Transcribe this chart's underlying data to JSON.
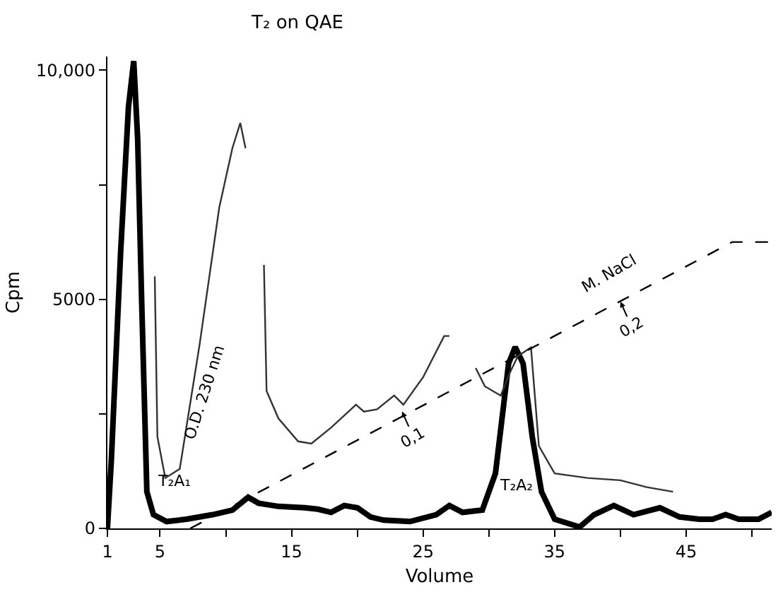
{
  "chart_data": {
    "type": "line",
    "title": "T₂ on QAE",
    "xlabel": "Volume",
    "ylabel": "Cpm",
    "xlim": [
      1,
      51.5
    ],
    "ylim": [
      0,
      10300
    ],
    "xticks": [
      1,
      5,
      {
        "value": 10,
        "label": null
      },
      15,
      {
        "value": 20,
        "label": null
      },
      25,
      {
        "value": 30,
        "label": null
      },
      35,
      {
        "value": 40,
        "label": null
      },
      45,
      {
        "value": 50,
        "label": null
      }
    ],
    "yticks": [
      0,
      {
        "value": 2500,
        "label": null
      },
      5000,
      {
        "value": 7500,
        "label": null
      },
      {
        "value": 10000,
        "label": "10,000"
      }
    ],
    "legend": false,
    "marker": "none",
    "series": [
      {
        "color": "#000000",
        "line_style": "solid",
        "x": [
          1,
          1.3,
          2,
          2.6,
          3,
          3.3,
          3.6,
          4,
          4.5,
          5.5,
          7,
          9,
          10.5,
          11.7,
          12.5,
          14,
          16,
          17,
          18,
          19,
          20,
          21,
          22,
          24,
          26,
          27,
          28,
          29.5,
          30.5,
          31.5,
          32,
          32.6,
          33.3,
          34,
          35,
          36.9,
          38,
          39.5,
          41,
          43,
          44.5,
          46,
          47,
          48,
          49,
          50.5,
          51.5
        ],
        "values": [
          0,
          1500,
          6000,
          9200,
          10200,
          8500,
          5000,
          800,
          300,
          150,
          200,
          300,
          400,
          680,
          550,
          480,
          450,
          420,
          350,
          500,
          450,
          250,
          180,
          150,
          300,
          500,
          350,
          400,
          1200,
          3600,
          3960,
          3600,
          2000,
          800,
          200,
          30,
          300,
          500,
          300,
          450,
          250,
          200,
          200,
          300,
          200,
          200,
          350
        ]
      },
      {
        "name": "O.D. 230 nm",
        "color": "#333333",
        "line_style": "solid",
        "x": [
          4.6,
          4.8,
          5.4,
          6.5,
          8,
          9.5,
          10.5,
          11.1,
          11.5,
          12.3,
          12.9,
          13.1,
          14,
          15.5,
          16.5,
          18,
          19.9,
          20.5,
          21.5,
          22.8,
          23.5,
          25,
          26.6,
          27,
          28,
          29,
          29.7,
          30.9,
          31.6,
          32.2,
          33.2,
          33.8,
          35,
          37.5,
          40,
          42,
          44
        ],
        "values": [
          5500,
          2000,
          1100,
          1300,
          4000,
          7000,
          8300,
          8850,
          8300,
          null,
          5750,
          3000,
          2400,
          1900,
          1850,
          2200,
          2700,
          2550,
          2600,
          2900,
          2700,
          3300,
          4200,
          4200,
          null,
          3500,
          3100,
          2900,
          3400,
          3760,
          3950,
          1800,
          1200,
          1100,
          1050,
          900,
          800
        ]
      },
      {
        "name": "M. NaCl",
        "color": "#000000",
        "line_style": "dashed",
        "x": [
          7.3,
          48.5,
          51.5
        ],
        "values": [
          0,
          6250,
          6250
        ]
      }
    ],
    "annotations": [
      {
        "text": "0,1",
        "x": 23.4,
        "y": 2550
      },
      {
        "text": "0,2",
        "x": 40,
        "y": 4950
      },
      "T₂A₁",
      "T₂A₂"
    ]
  }
}
